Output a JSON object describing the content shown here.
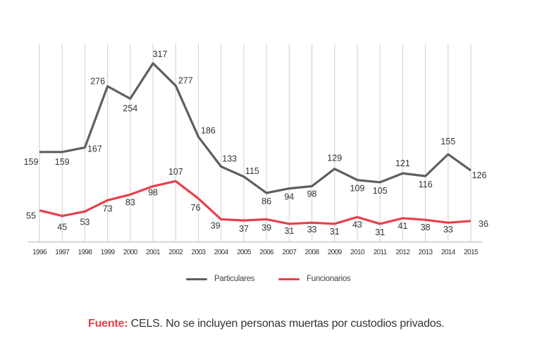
{
  "chart_data": {
    "type": "line",
    "title": "",
    "xlabel": "",
    "ylabel": "",
    "x": [
      "1996",
      "1997",
      "1998",
      "1999",
      "2000",
      "2001",
      "2002",
      "2003",
      "2004",
      "2005",
      "2006",
      "2007",
      "2008",
      "2009",
      "2010",
      "2011",
      "2012",
      "2013",
      "2014",
      "2015"
    ],
    "ylim": [
      0,
      350
    ],
    "grid": "vertical",
    "legend_position": "bottom",
    "series": [
      {
        "name": "Particulares",
        "color": "#5f5f62",
        "values": [
          159,
          159,
          167,
          276,
          254,
          317,
          277,
          186,
          133,
          115,
          86,
          94,
          98,
          129,
          109,
          105,
          121,
          116,
          155,
          126
        ]
      },
      {
        "name": "Funcionarios",
        "color": "#e8404a",
        "values": [
          55,
          45,
          53,
          73,
          83,
          98,
          107,
          76,
          39,
          37,
          39,
          31,
          33,
          31,
          43,
          31,
          41,
          38,
          33,
          36
        ]
      }
    ]
  },
  "legend": {
    "items": [
      {
        "label": "Particulares",
        "color": "#5f5f62"
      },
      {
        "label": "Funcionarios",
        "color": "#e8404a"
      }
    ]
  },
  "source": {
    "label": "Fuente:",
    "text": " CELS. No se incluyen personas muertas por custodios privados."
  }
}
